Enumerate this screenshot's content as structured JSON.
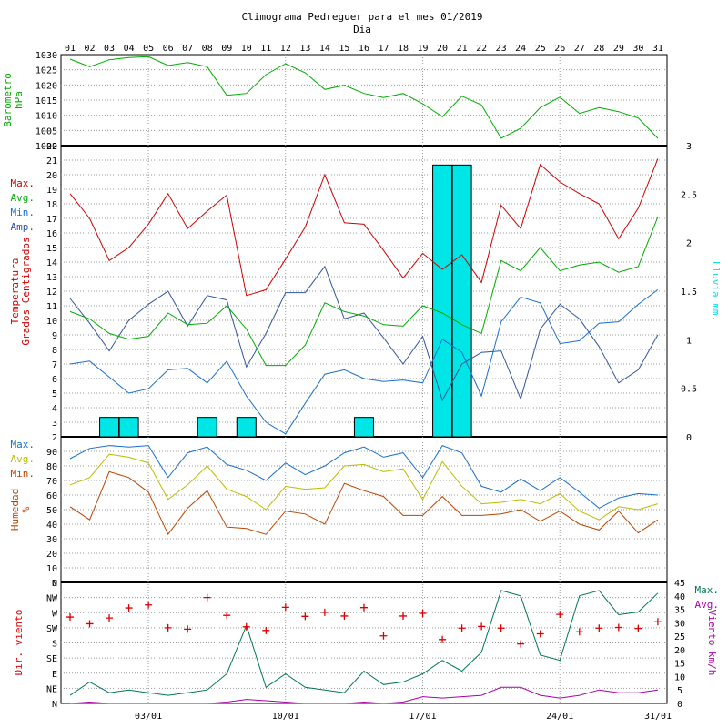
{
  "title": "Climograma Pedreguer para el mes 01/2019",
  "xlabel": "Dia",
  "days": [
    "01",
    "02",
    "03",
    "04",
    "05",
    "06",
    "07",
    "08",
    "09",
    "10",
    "11",
    "12",
    "13",
    "14",
    "15",
    "16",
    "17",
    "18",
    "19",
    "20",
    "21",
    "22",
    "23",
    "24",
    "25",
    "26",
    "27",
    "28",
    "29",
    "30",
    "31"
  ],
  "bottom_dates": [
    "03/01",
    "10/01",
    "17/01",
    "24/01",
    "31/01"
  ],
  "colors": {
    "red": "#cc0000",
    "green": "#00aa00",
    "blue": "#1a6ecc",
    "darkblue": "#335599",
    "cyan": "#00e5e5",
    "orange": "#bb4400",
    "yellow": "#bbbb00",
    "teal": "#007755",
    "magenta": "#aa00aa",
    "plus": "#dd0000"
  },
  "chart_data": [
    {
      "type": "line",
      "panel": "pressure",
      "ylabel": "Barometro hPa",
      "ylim": [
        1000,
        1030
      ],
      "yticks": [
        "1030",
        "1025",
        "1020",
        "1015",
        "1010",
        "1005",
        "1000"
      ],
      "series": [
        {
          "name": "Barometro",
          "color": "green",
          "values": [
            1028.5,
            1026,
            1028.3,
            1029,
            1029.3,
            1026.4,
            1027.4,
            1026,
            1016.6,
            1017.2,
            1023.4,
            1027,
            1024,
            1018.5,
            1019.9,
            1017.2,
            1015.8,
            1017.2,
            1013.8,
            1009.5,
            1016.3,
            1013.4,
            1002.4,
            1005.7,
            1012.5,
            1016,
            1010.6,
            1012.5,
            1011.2,
            1009.1,
            1002.4
          ]
        }
      ]
    },
    {
      "type": "line",
      "panel": "temperature",
      "ylabel": "Temperatura Grados Centigrados",
      "y2label": "Lluvia mm.",
      "ylim": [
        2,
        22
      ],
      "y2lim": [
        0,
        3
      ],
      "yticks": [
        "22",
        "21",
        "20",
        "19",
        "18",
        "17",
        "16",
        "15",
        "14",
        "13",
        "12",
        "11",
        "10",
        "9",
        "8",
        "7",
        "6",
        "5",
        "4",
        "3",
        "2"
      ],
      "y2ticks": [
        "3",
        "2.5",
        "2",
        "1.5",
        "1",
        "0.5",
        "0"
      ],
      "legend": [
        "Max.",
        "Avg.",
        "Min.",
        "Amp."
      ],
      "series": [
        {
          "name": "Max.",
          "color": "red",
          "values": [
            18.7,
            17,
            14.1,
            15,
            16.6,
            18.7,
            16.3,
            17.5,
            18.6,
            11.7,
            12.1,
            14.2,
            16.4,
            20,
            16.7,
            16.6,
            14.8,
            12.9,
            14.6,
            13.5,
            14.5,
            12.6,
            17.9,
            16.3,
            20.7,
            19.5,
            18.7,
            18,
            15.6,
            17.7,
            21.1
          ]
        },
        {
          "name": "Avg.",
          "color": "green",
          "values": [
            10.6,
            10.1,
            9.1,
            8.7,
            8.9,
            10.5,
            9.7,
            9.8,
            11,
            9.4,
            6.9,
            6.9,
            8.3,
            11.2,
            10.6,
            10.3,
            9.7,
            9.6,
            11,
            10.5,
            9.7,
            9.1,
            14.1,
            13.4,
            15,
            13.4,
            13.8,
            14,
            13.3,
            13.7,
            17.1
          ]
        },
        {
          "name": "Min.",
          "color": "blue",
          "values": [
            7,
            7.2,
            6.1,
            5,
            5.3,
            6.6,
            6.7,
            5.7,
            7.2,
            4.8,
            3,
            2.2,
            4.3,
            6.3,
            6.6,
            6,
            5.8,
            5.9,
            5.7,
            8.7,
            7.8,
            4.8,
            9.9,
            11.6,
            11.2,
            8.4,
            8.6,
            9.8,
            9.9,
            11.1,
            12.1
          ]
        },
        {
          "name": "Amp.",
          "color": "darkblue",
          "values": [
            11.5,
            9.8,
            7.9,
            10,
            11.1,
            12,
            9.6,
            11.7,
            11.4,
            6.8,
            9.1,
            11.9,
            11.9,
            13.7,
            10.1,
            10.5,
            8.8,
            7,
            8.9,
            4.5,
            7,
            7.8,
            7.9,
            4.6,
            9.4,
            11.1,
            10.1,
            8.2,
            5.7,
            6.6,
            9
          ]
        }
      ],
      "rain": {
        "name": "Lluvia",
        "color": "cyan",
        "values": [
          0,
          0,
          0.2,
          0.2,
          0,
          0,
          0,
          0.2,
          0,
          0.2,
          0,
          0,
          0,
          0,
          0,
          0.2,
          0,
          0,
          0,
          2.8,
          2.8,
          0,
          0,
          0,
          0,
          0,
          0,
          0,
          0,
          0,
          0
        ]
      }
    },
    {
      "type": "line",
      "panel": "humidity",
      "ylabel": "Humedad %",
      "ylim": [
        0,
        100
      ],
      "yticks": [
        "90",
        "80",
        "70",
        "60",
        "50",
        "40",
        "30",
        "20",
        "10",
        "0"
      ],
      "legend": [
        "Max.",
        "Avg.",
        "Min."
      ],
      "series": [
        {
          "name": "Max.",
          "color": "blue",
          "values": [
            85,
            92,
            94,
            93,
            94,
            72,
            89,
            93,
            81,
            77,
            70,
            82,
            74,
            80,
            89,
            93,
            86,
            89,
            72,
            94,
            89,
            66,
            62,
            71,
            63,
            72,
            62,
            51,
            58,
            61,
            60
          ]
        },
        {
          "name": "Avg.",
          "color": "yellow",
          "values": [
            67,
            72,
            88,
            86,
            82,
            57,
            67,
            80,
            64,
            59,
            50,
            66,
            64,
            65,
            80,
            81,
            76,
            78,
            57,
            83,
            66,
            54,
            55,
            57,
            54,
            61,
            49,
            43,
            52,
            50,
            54
          ]
        },
        {
          "name": "Min.",
          "color": "orange",
          "values": [
            52,
            43,
            76,
            72,
            62,
            33,
            51,
            63,
            38,
            37,
            33,
            49,
            47,
            40,
            68,
            63,
            59,
            46,
            46,
            59,
            46,
            46,
            47,
            50,
            42,
            49,
            40,
            36,
            49,
            34,
            43
          ]
        }
      ]
    },
    {
      "type": "line",
      "panel": "wind",
      "ylabel": "Dir. viento",
      "y2label": "Viento km/h",
      "ylim": [
        0,
        45
      ],
      "dir_ticks": [
        "N",
        "NW",
        "W",
        "SW",
        "S",
        "SE",
        "E",
        "NE",
        "N"
      ],
      "speed_ticks": [
        "45",
        "40",
        "35",
        "30",
        "25",
        "20",
        "15",
        "10",
        "5",
        "0"
      ],
      "legend": [
        "Max.",
        "Avg."
      ],
      "direction_deg": [
        257,
        237,
        254,
        284,
        293,
        225,
        221,
        315,
        262,
        228,
        217,
        286,
        259,
        271,
        260,
        285,
        201,
        260,
        268,
        190,
        224,
        229,
        224,
        177,
        207,
        265,
        213,
        224,
        226,
        223,
        243
      ],
      "series": [
        {
          "name": "Max.",
          "color": "teal",
          "values": [
            3,
            8,
            4,
            5,
            4,
            3,
            4,
            5,
            11,
            29,
            6,
            11,
            6,
            5,
            4,
            12,
            7,
            8,
            11,
            16,
            12,
            19,
            42,
            40,
            18,
            16,
            40,
            42,
            33,
            34,
            41
          ]
        },
        {
          "name": "Avg.",
          "color": "magenta",
          "values": [
            0,
            0.5,
            0,
            0,
            0,
            0,
            0,
            0,
            0.5,
            1.5,
            1,
            0.5,
            0,
            0,
            0,
            0.5,
            0,
            0.5,
            2.5,
            2,
            2.5,
            3,
            6,
            6,
            3,
            2,
            3,
            5,
            4,
            4,
            5
          ]
        }
      ]
    }
  ]
}
